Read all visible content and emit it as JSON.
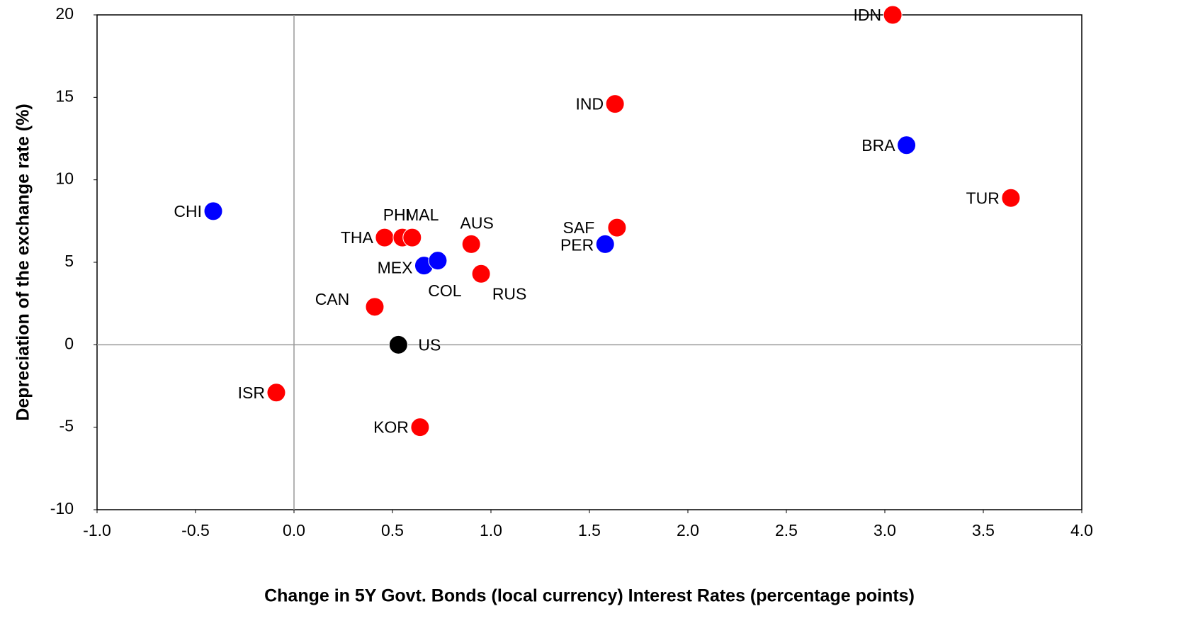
{
  "chart_data": {
    "type": "scatter",
    "x_label": "Change in 5Y Govt. Bonds (local currency) Interest Rates (percentage points)",
    "y_label": "Depreciation of the exchange rate (%)",
    "labels": [
      "IDN",
      "IND",
      "BRA",
      "TUR",
      "CHI",
      "THA",
      "PHI",
      "MAL",
      "AUS",
      "SAF",
      "PER",
      "MEX",
      "COL",
      "RUS",
      "CAN",
      "US",
      "ISR",
      "KOR"
    ],
    "x": [
      3.04,
      1.63,
      3.11,
      3.64,
      -0.41,
      0.46,
      0.55,
      0.6,
      0.9,
      1.64,
      1.58,
      0.66,
      0.73,
      0.95,
      0.41,
      0.53,
      -0.09,
      0.64
    ],
    "y": [
      20.0,
      14.6,
      12.1,
      8.9,
      8.1,
      6.5,
      6.5,
      6.5,
      6.1,
      7.1,
      6.1,
      4.8,
      5.1,
      4.3,
      2.3,
      0.0,
      -2.9,
      -5.0
    ],
    "colors": [
      "#ff0000",
      "#ff0000",
      "#0000ff",
      "#ff0000",
      "#0000ff",
      "#ff0000",
      "#ff0000",
      "#ff0000",
      "#ff0000",
      "#ff0000",
      "#0000ff",
      "#0000ff",
      "#0000ff",
      "#ff0000",
      "#ff0000",
      "#000000",
      "#ff0000",
      "#ff0000"
    ],
    "xlim": [
      -1.0,
      4.0
    ],
    "xticks": [
      {
        "value": -1.0,
        "label": "-1.0"
      },
      -0.5,
      {
        "value": 0.0,
        "label": "0.0"
      },
      0.5,
      {
        "value": 1.0,
        "label": "1.0"
      },
      1.5,
      {
        "value": 2.0,
        "label": "2.0"
      },
      2.5,
      {
        "value": 3.0,
        "label": "3.0"
      },
      3.5,
      {
        "value": 4.0,
        "label": "4.0"
      }
    ],
    "ylim": [
      -10,
      20
    ],
    "yticks": [
      -10,
      -5,
      0,
      5,
      10,
      15,
      20
    ]
  }
}
